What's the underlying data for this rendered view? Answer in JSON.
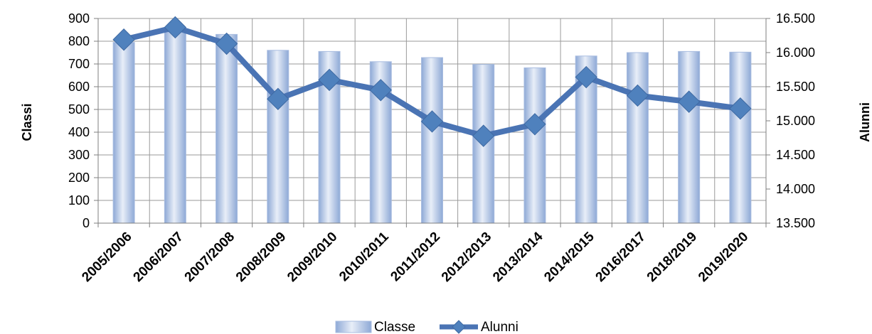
{
  "chart_data": {
    "type": "bar",
    "categories": [
      "2005/2006",
      "2006/2007",
      "2007/2008",
      "2008/2009",
      "2009/2010",
      "2010/2011",
      "2011/2012",
      "2012/2013",
      "2013/2014",
      "2014/2015",
      "2016/2017",
      "2018/2019",
      "2019/2020"
    ],
    "series": [
      {
        "name": "Classe",
        "type": "bar",
        "axis": "left",
        "values": [
          795,
          840,
          830,
          760,
          755,
          710,
          728,
          698,
          683,
          735,
          750,
          755,
          752
        ]
      },
      {
        "name": "Alunni",
        "type": "line",
        "axis": "right",
        "values": [
          16190,
          16370,
          16130,
          15320,
          15600,
          15450,
          14990,
          14780,
          14950,
          15640,
          15370,
          15280,
          15180
        ]
      }
    ],
    "ylabel": "Classi",
    "y2label": "Alunni",
    "ylim": [
      0,
      900
    ],
    "y2lim": [
      13500,
      16500
    ],
    "yticks": [
      "0",
      "100",
      "200",
      "300",
      "400",
      "500",
      "600",
      "700",
      "800",
      "900"
    ],
    "y2ticks": [
      "13.500",
      "14.000",
      "14.500",
      "15.000",
      "15.500",
      "16.000",
      "16.500"
    ],
    "grid": true,
    "legend": "bottom",
    "colors": {
      "bar_light": "#e4ecf7",
      "bar_dark": "#8ea9d6",
      "bar_edge": "#a9bde0",
      "line": "#4a74b4",
      "marker": "#4f81bd",
      "grid": "#9a9a9a"
    }
  }
}
